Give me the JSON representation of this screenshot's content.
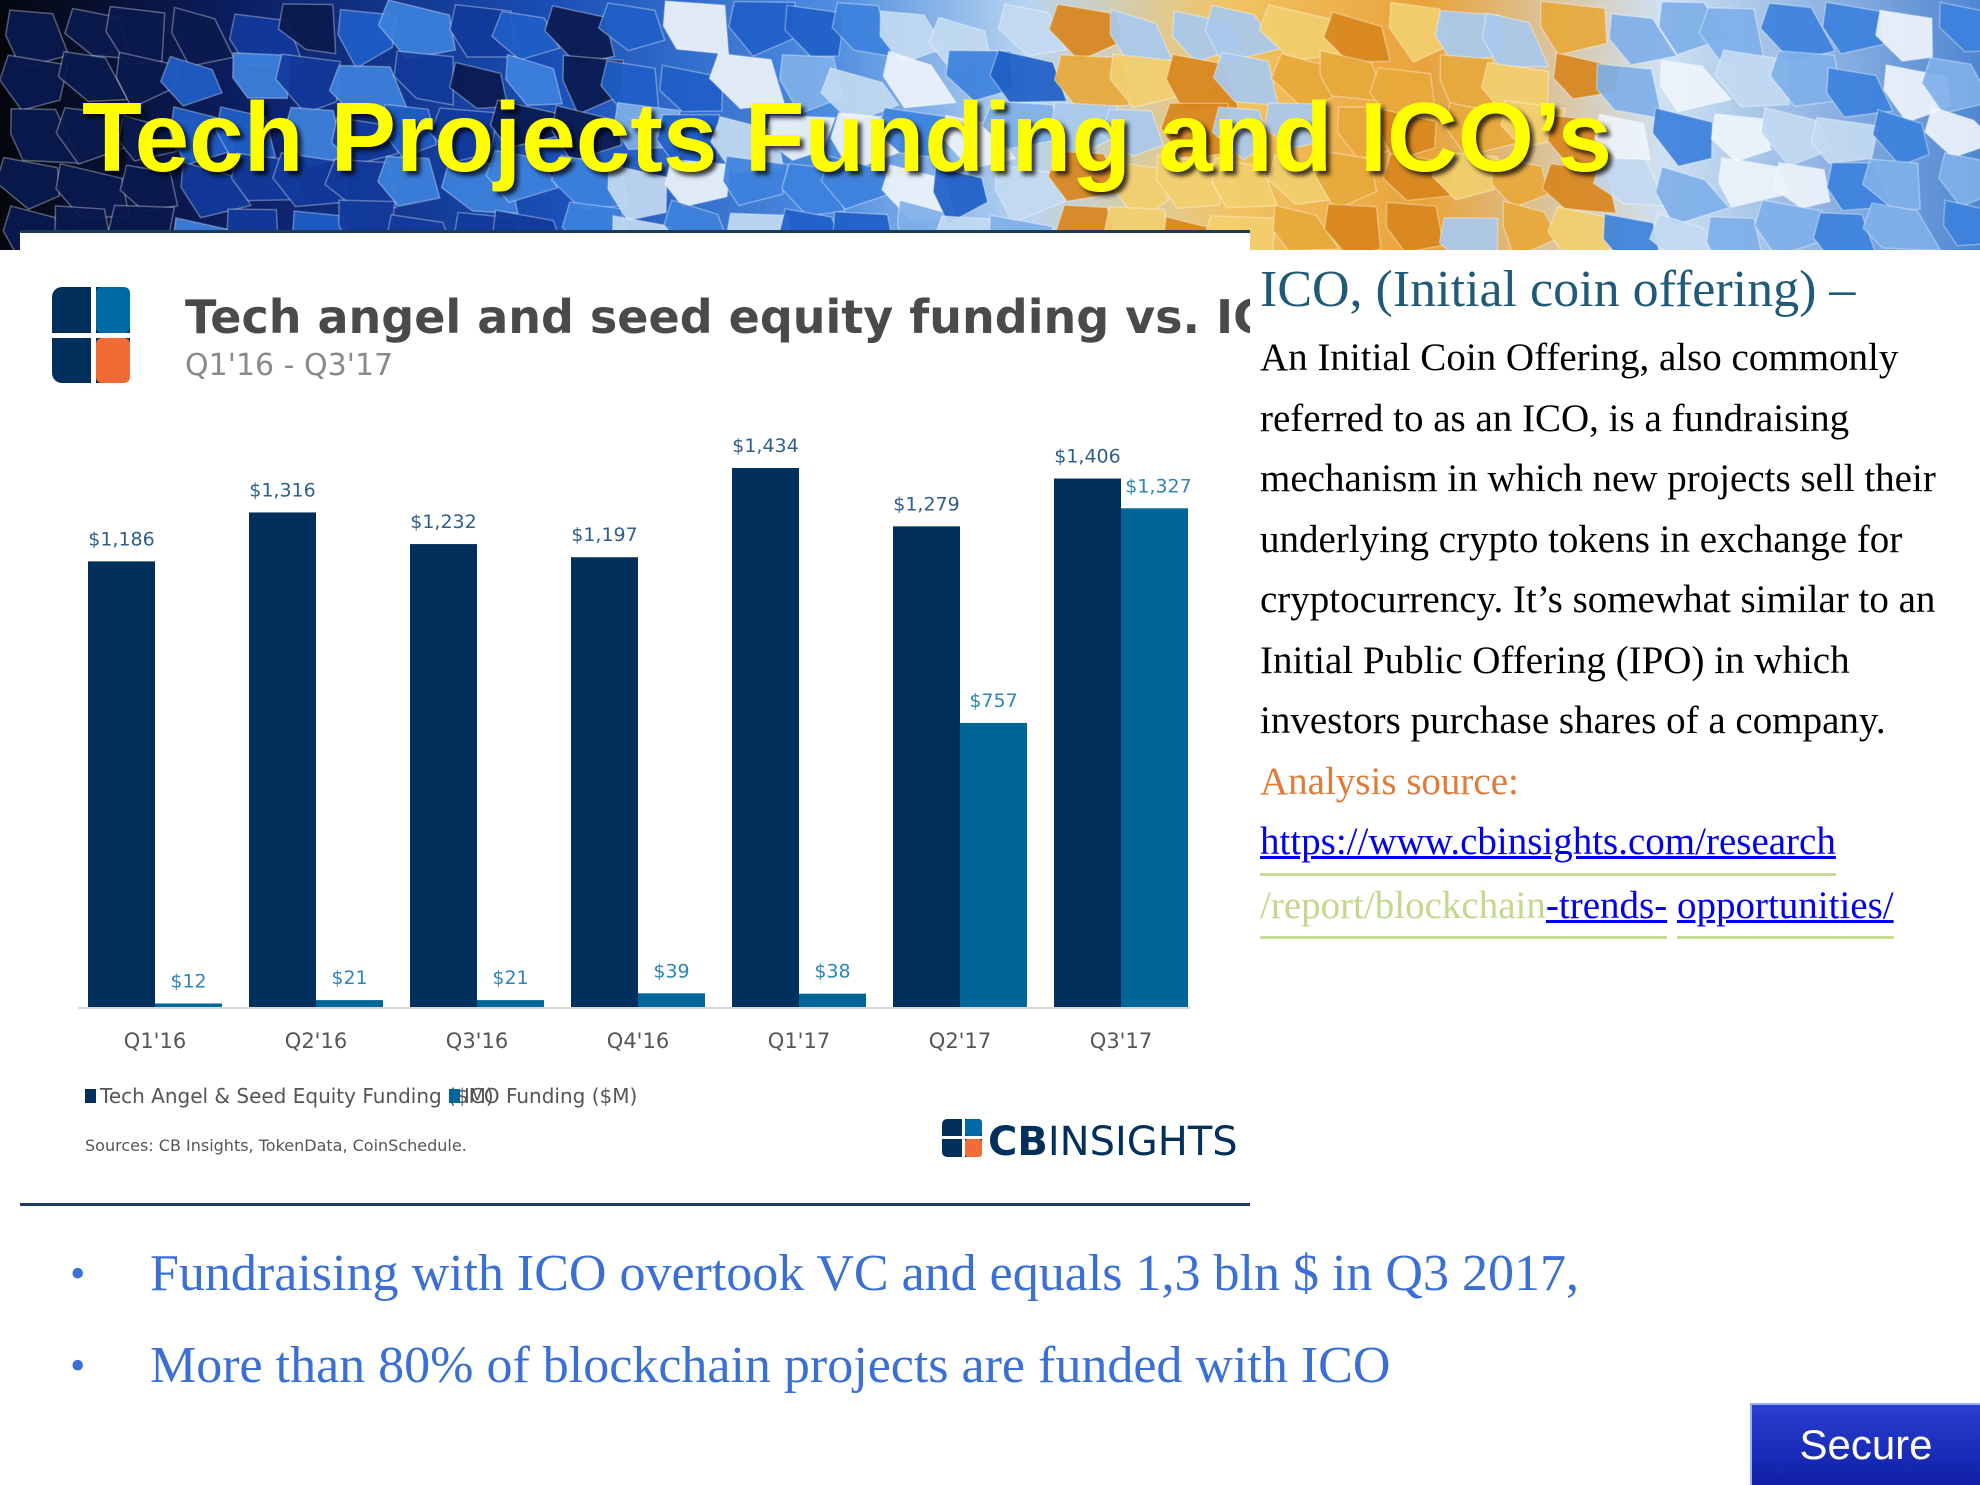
{
  "slide": {
    "title": "Tech Projects Funding and ICO’s"
  },
  "colors": {
    "title": "#ffff00",
    "series_equity": "#00305b",
    "series_ico": "#00669a",
    "heading": "#1f5a78",
    "source_label": "#e07b39",
    "bullet_text": "#3a6fd6"
  },
  "chart_data": {
    "type": "bar",
    "title": "Tech angel and seed equity funding vs. ICO funding",
    "subtitle": "Q1'16 - Q3'17",
    "categories": [
      "Q1'16",
      "Q2'16",
      "Q3'16",
      "Q4'16",
      "Q1'17",
      "Q2'17",
      "Q3'17"
    ],
    "series": [
      {
        "name": "Tech Angel & Seed Equity Funding ($M)",
        "values": [
          1186,
          1316,
          1232,
          1197,
          1434,
          1279,
          1406
        ],
        "labels": [
          "$1,186",
          "$1,316",
          "$1,232",
          "$1,197",
          "$1,434",
          "$1,279",
          "$1,406"
        ]
      },
      {
        "name": "ICO Funding ($M)",
        "values": [
          12,
          21,
          21,
          39,
          38,
          757,
          1327
        ],
        "labels": [
          "$12",
          "$21",
          "$21",
          "$39",
          "$38",
          "$757",
          "$1,327"
        ]
      }
    ],
    "ylim": [
      0,
      1434
    ],
    "grid": false,
    "legend_position": "bottom-left",
    "source": "Sources: CB Insights, TokenData, CoinSchedule.",
    "brand": {
      "strong": "CB",
      "light": "INSIGHTS"
    }
  },
  "right_text": {
    "heading": "ICO, (Initial coin offering) –",
    "body": "An Initial Coin Offering, also commonly referred to as an ICO, is a fundraising mechanism in which new projects sell their underlying crypto tokens in exchange for cryptocurrency. It’s somewhat similar to an Initial Public Offering (IPO) in which investors purchase shares of a company.",
    "source_label": "Analysis source:",
    "link_part1": "https://www.cbinsights.com/research",
    "link_part2": "/report/blockchain",
    "link_part3": "-trends-",
    "link_part4": "opportunities/"
  },
  "bullets": [
    "Fundraising with ICO overtook VC and equals 1,3 bln $ in Q3 2017,",
    "More than 80% of blockchain projects are funded with ICO"
  ],
  "badge": {
    "label": "Secure"
  }
}
